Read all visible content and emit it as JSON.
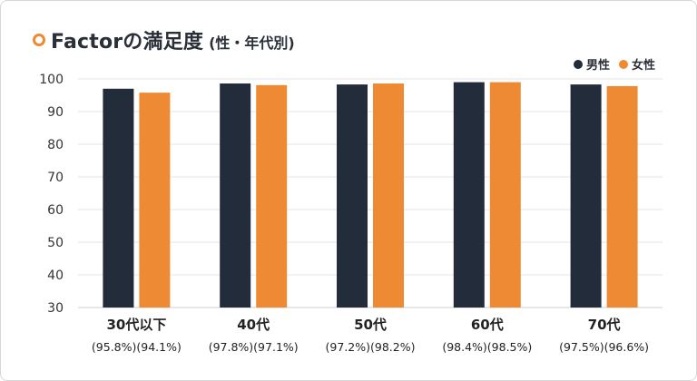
{
  "header": {
    "title": "Factorの満足度",
    "subtitle": "(性・年代別)"
  },
  "colors": {
    "male": "#222c3b",
    "female": "#ee8a33",
    "grid": "#e6e6e6",
    "accent": "#ee8a33"
  },
  "chart_data": {
    "type": "bar",
    "title": "Factorの満足度 (性・年代別)",
    "categories": [
      "30代以下",
      "40代",
      "50代",
      "60代",
      "70代"
    ],
    "category_notes": [
      "(95.8%)(94.1%)",
      "(97.8%)(97.1%)",
      "(97.2%)(98.2%)",
      "(98.4%)(98.5%)",
      "(97.5%)(96.6%)"
    ],
    "series": [
      {
        "name": "男性",
        "values": [
          97.0,
          98.6,
          98.3,
          99.0,
          98.3
        ]
      },
      {
        "name": "女性",
        "values": [
          95.8,
          98.1,
          98.6,
          99.0,
          97.8
        ]
      }
    ],
    "ylim": [
      30,
      100
    ],
    "yticks": [
      30,
      40,
      50,
      60,
      70,
      80,
      90,
      100
    ],
    "grid": true,
    "legend_position": "top-right"
  }
}
